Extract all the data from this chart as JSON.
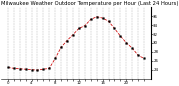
{
  "title": "Milwaukee Weather Outdoor Temperature per Hour (Last 24 Hours)",
  "hours": [
    0,
    1,
    2,
    3,
    4,
    5,
    6,
    7,
    8,
    9,
    10,
    11,
    12,
    13,
    14,
    15,
    16,
    17,
    18,
    19,
    20,
    21,
    22,
    23
  ],
  "temps": [
    24.5,
    24.3,
    24.2,
    24.1,
    24.0,
    23.9,
    24.1,
    24.3,
    26.5,
    29.0,
    30.5,
    31.8,
    33.2,
    33.8,
    35.2,
    35.8,
    35.5,
    34.8,
    33.2,
    31.5,
    30.0,
    28.8,
    27.2,
    26.5
  ],
  "line_color": "#cc0000",
  "marker_color": "#000000",
  "bg_color": "#ffffff",
  "grid_color": "#999999",
  "ylim_min": 22,
  "ylim_max": 38,
  "yticks": [
    24,
    26,
    28,
    30,
    32,
    34,
    36
  ],
  "xtick_labels": [
    "0",
    "",
    "",
    "",
    "4",
    "",
    "",
    "",
    "8",
    "",
    "",
    "",
    "12",
    "",
    "",
    "",
    "16",
    "",
    "",
    "",
    "20",
    "",
    "",
    ""
  ],
  "title_fontsize": 3.8,
  "tick_fontsize": 2.8
}
